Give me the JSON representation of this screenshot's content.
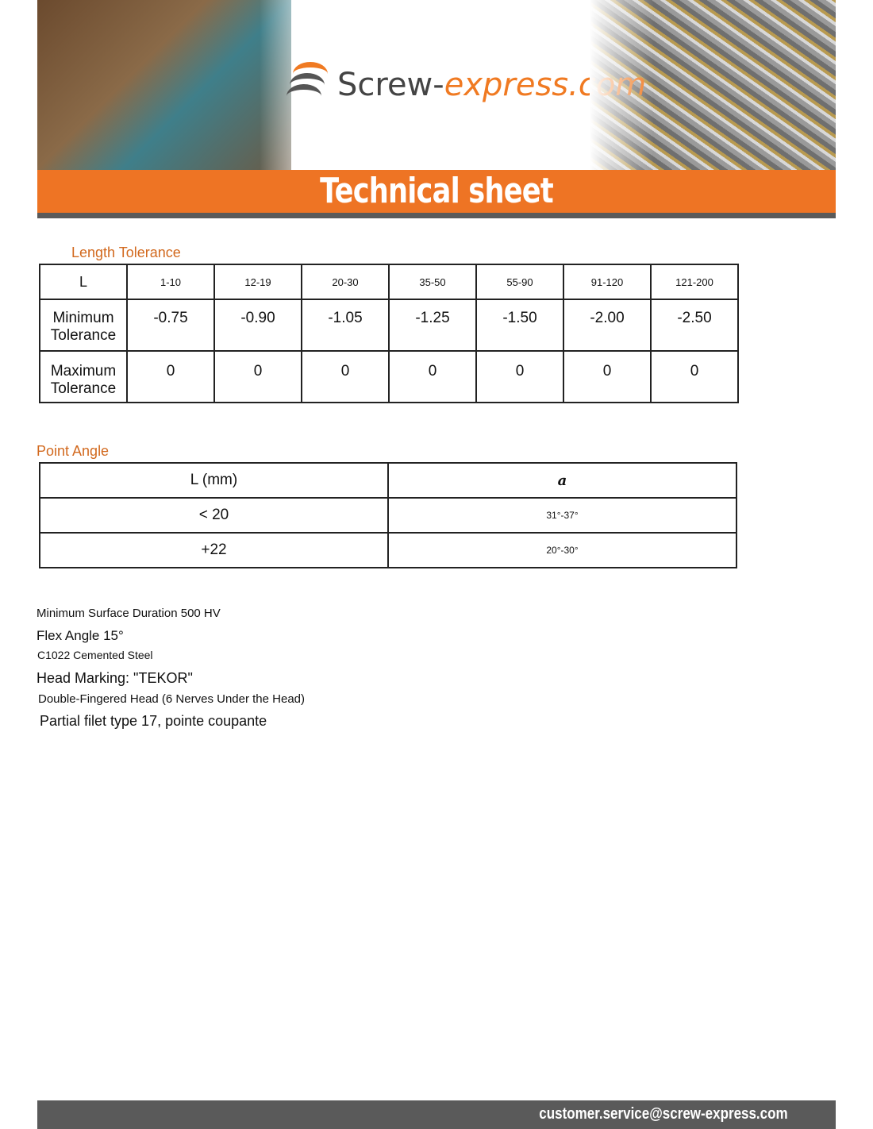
{
  "header": {
    "logo_main": "Screw-",
    "logo_accent": "express.com",
    "title": "Technical sheet"
  },
  "length_tolerance": {
    "title": "Length Tolerance",
    "header": [
      "L",
      "1-10",
      "12-19",
      "20-30",
      "35-50",
      "55-90",
      "91-120",
      "121-200"
    ],
    "rows": [
      {
        "label": "Minimum Tolerance",
        "values": [
          "-0.75",
          "-0.90",
          "-1.05",
          "-1.25",
          "-1.50",
          "-2.00",
          "-2.50"
        ]
      },
      {
        "label": "Maximum Tolerance",
        "values": [
          "0",
          "0",
          "0",
          "0",
          "0",
          "0",
          "0"
        ]
      }
    ]
  },
  "point_angle": {
    "title": "Point Angle",
    "header": [
      "L (mm)",
      "a"
    ],
    "rows": [
      [
        "< 20",
        "31°-37°"
      ],
      [
        "+22",
        "20°-30°"
      ]
    ]
  },
  "notes": [
    "Minimum Surface Duration 500 HV",
    "Flex Angle 15°",
    "C1022 Cemented Steel",
    "Head Marking: \"TEKOR\"",
    "Double-Fingered Head (6 Nerves Under the Head)",
    "Partial filet type 17, pointe coupante"
  ],
  "footer": {
    "email": "customer.service@screw-express.com"
  },
  "colors": {
    "accent": "#ee7424",
    "dark": "#5a5a5a",
    "section_title": "#d2691e"
  }
}
